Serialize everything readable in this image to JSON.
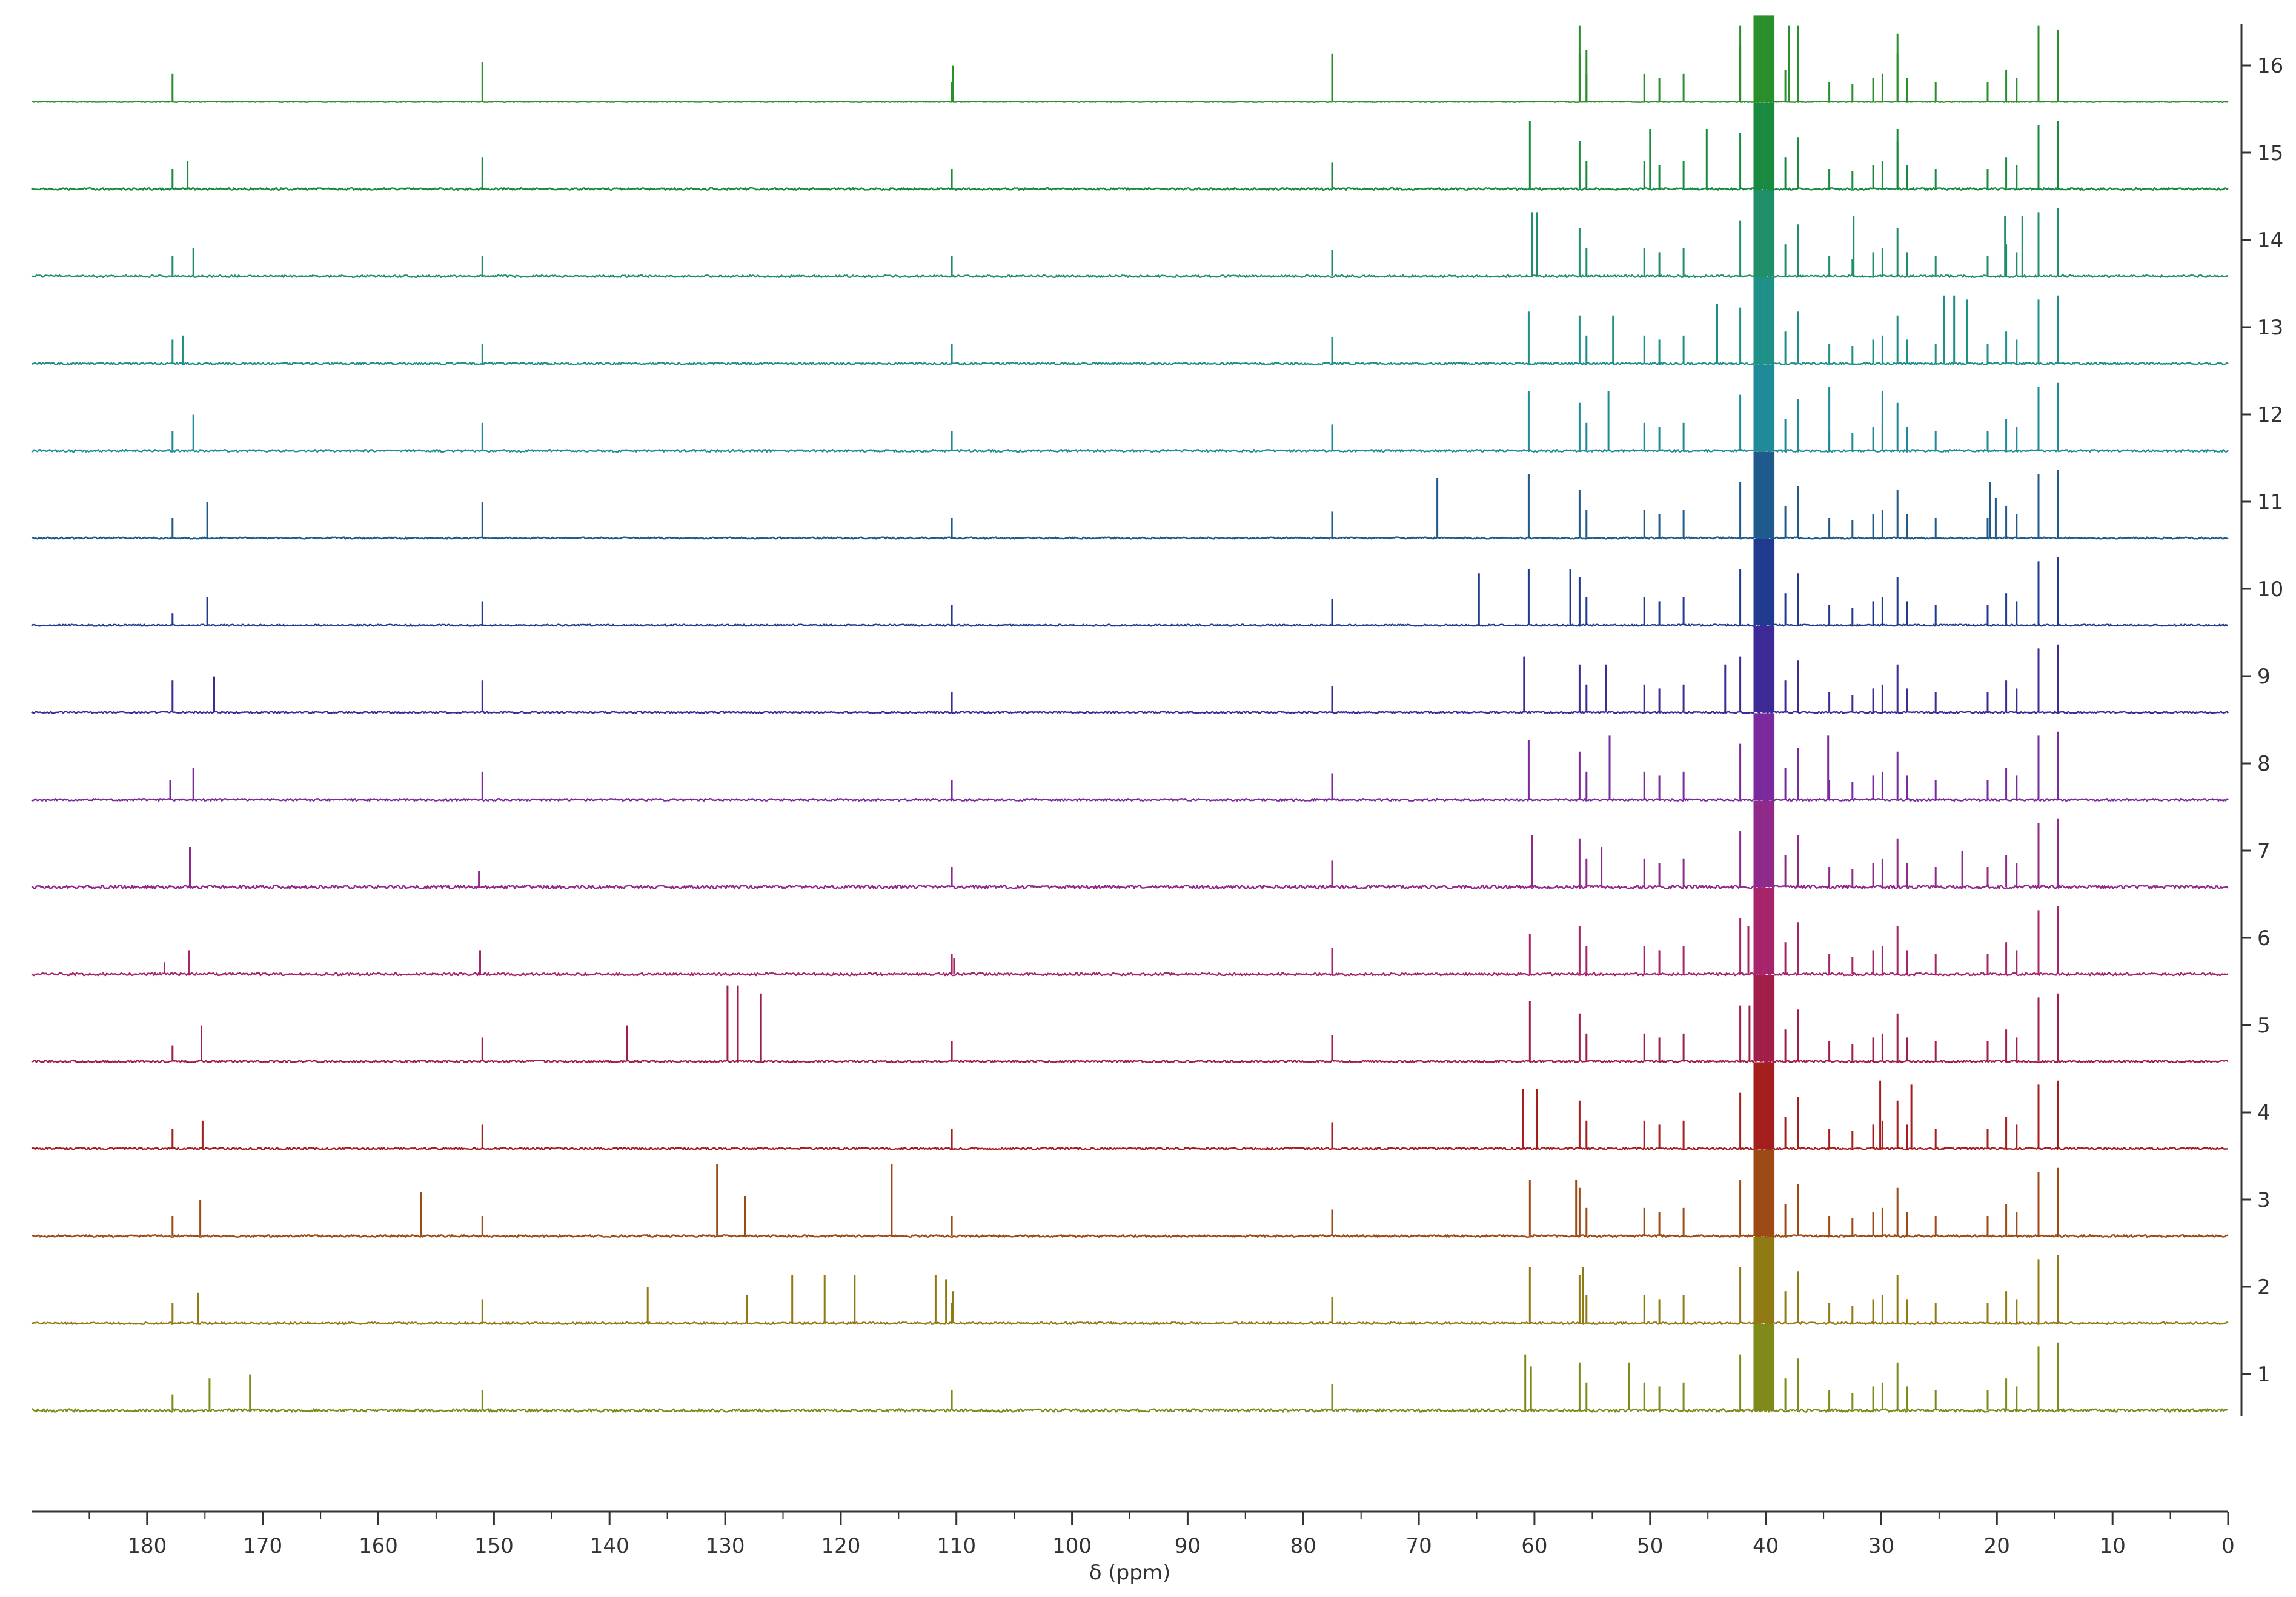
{
  "chart_data": {
    "type": "line",
    "title": "",
    "xlabel": "δ (ppm)",
    "ylabel": "",
    "xlim": [
      190,
      0
    ],
    "x_ticks": [
      180,
      170,
      160,
      150,
      140,
      130,
      120,
      110,
      100,
      90,
      80,
      70,
      60,
      50,
      40,
      30,
      20,
      10,
      0
    ],
    "stack_labels": [
      "1",
      "2",
      "3",
      "4",
      "5",
      "6",
      "7",
      "8",
      "9",
      "10",
      "11",
      "12",
      "13",
      "14",
      "15",
      "16"
    ],
    "common_peaks": [
      {
        "ppm": 110.4,
        "h": 0.25
      },
      {
        "ppm": 77.5,
        "h": 0.33
      },
      {
        "ppm": 56.1,
        "h": 0.6
      },
      {
        "ppm": 55.5,
        "h": 0.35
      },
      {
        "ppm": 50.5,
        "h": 0.35
      },
      {
        "ppm": 49.2,
        "h": 0.3
      },
      {
        "ppm": 47.1,
        "h": 0.35
      },
      {
        "ppm": 42.2,
        "h": 0.7
      },
      {
        "ppm": 38.3,
        "h": 0.4
      },
      {
        "ppm": 37.2,
        "h": 0.65
      },
      {
        "ppm": 34.5,
        "h": 0.25
      },
      {
        "ppm": 32.5,
        "h": 0.22
      },
      {
        "ppm": 30.7,
        "h": 0.3
      },
      {
        "ppm": 29.9,
        "h": 0.35
      },
      {
        "ppm": 28.6,
        "h": 0.6
      },
      {
        "ppm": 27.8,
        "h": 0.3
      },
      {
        "ppm": 25.3,
        "h": 0.25
      },
      {
        "ppm": 20.8,
        "h": 0.25
      },
      {
        "ppm": 19.2,
        "h": 0.4
      },
      {
        "ppm": 18.3,
        "h": 0.3
      },
      {
        "ppm": 16.4,
        "h": 0.8
      },
      {
        "ppm": 14.7,
        "h": 0.85
      }
    ],
    "series": [
      {
        "name": "1",
        "color": "#7f8a1a",
        "noise": 0.07,
        "peaks": [
          {
            "ppm": 177.8,
            "h": 0.2
          },
          {
            "ppm": 174.6,
            "h": 0.4
          },
          {
            "ppm": 171.1,
            "h": 0.45
          },
          {
            "ppm": 151.0,
            "h": 0.25
          },
          {
            "ppm": 60.8,
            "h": 0.7
          },
          {
            "ppm": 60.3,
            "h": 0.55
          },
          {
            "ppm": 51.8,
            "h": 0.6
          }
        ]
      },
      {
        "name": "2",
        "color": "#8f7a14",
        "noise": 0.05,
        "peaks": [
          {
            "ppm": 177.8,
            "h": 0.25
          },
          {
            "ppm": 175.6,
            "h": 0.38
          },
          {
            "ppm": 151.0,
            "h": 0.3
          },
          {
            "ppm": 136.7,
            "h": 0.45
          },
          {
            "ppm": 128.1,
            "h": 0.35
          },
          {
            "ppm": 124.2,
            "h": 0.6
          },
          {
            "ppm": 121.4,
            "h": 0.6
          },
          {
            "ppm": 118.8,
            "h": 0.6
          },
          {
            "ppm": 111.8,
            "h": 0.6
          },
          {
            "ppm": 110.9,
            "h": 0.55
          },
          {
            "ppm": 110.3,
            "h": 0.4
          },
          {
            "ppm": 60.4,
            "h": 0.7
          },
          {
            "ppm": 55.8,
            "h": 0.7
          }
        ]
      },
      {
        "name": "3",
        "color": "#9c4a16",
        "noise": 0.05,
        "peaks": [
          {
            "ppm": 177.8,
            "h": 0.25
          },
          {
            "ppm": 175.4,
            "h": 0.45
          },
          {
            "ppm": 156.3,
            "h": 0.55
          },
          {
            "ppm": 151.0,
            "h": 0.25
          },
          {
            "ppm": 130.7,
            "h": 0.9
          },
          {
            "ppm": 128.3,
            "h": 0.5
          },
          {
            "ppm": 115.6,
            "h": 0.9
          },
          {
            "ppm": 60.4,
            "h": 0.7
          },
          {
            "ppm": 56.4,
            "h": 0.7
          }
        ]
      },
      {
        "name": "4",
        "color": "#a51e1e",
        "noise": 0.05,
        "peaks": [
          {
            "ppm": 177.8,
            "h": 0.25
          },
          {
            "ppm": 175.2,
            "h": 0.35
          },
          {
            "ppm": 151.0,
            "h": 0.3
          },
          {
            "ppm": 61.0,
            "h": 0.75
          },
          {
            "ppm": 59.8,
            "h": 0.75
          },
          {
            "ppm": 30.1,
            "h": 0.85
          },
          {
            "ppm": 27.4,
            "h": 0.8
          }
        ]
      },
      {
        "name": "5",
        "color": "#a01e48",
        "noise": 0.05,
        "peaks": [
          {
            "ppm": 177.8,
            "h": 0.2
          },
          {
            "ppm": 175.3,
            "h": 0.45
          },
          {
            "ppm": 151.0,
            "h": 0.3
          },
          {
            "ppm": 138.5,
            "h": 0.45
          },
          {
            "ppm": 129.8,
            "h": 0.95
          },
          {
            "ppm": 128.9,
            "h": 0.95
          },
          {
            "ppm": 126.9,
            "h": 0.85
          },
          {
            "ppm": 60.4,
            "h": 0.75
          },
          {
            "ppm": 41.4,
            "h": 0.7
          }
        ]
      },
      {
        "name": "6",
        "color": "#a8246a",
        "noise": 0.06,
        "peaks": [
          {
            "ppm": 178.5,
            "h": 0.15
          },
          {
            "ppm": 176.4,
            "h": 0.3
          },
          {
            "ppm": 151.2,
            "h": 0.3
          },
          {
            "ppm": 110.2,
            "h": 0.2
          },
          {
            "ppm": 60.4,
            "h": 0.5
          },
          {
            "ppm": 41.5,
            "h": 0.6
          }
        ]
      },
      {
        "name": "7",
        "color": "#8f2a8a",
        "noise": 0.08,
        "peaks": [
          {
            "ppm": 176.3,
            "h": 0.5
          },
          {
            "ppm": 151.3,
            "h": 0.2
          },
          {
            "ppm": 60.2,
            "h": 0.65
          },
          {
            "ppm": 54.2,
            "h": 0.5
          },
          {
            "ppm": 23.0,
            "h": 0.45
          }
        ]
      },
      {
        "name": "8",
        "color": "#7a2a9c",
        "noise": 0.05,
        "peaks": [
          {
            "ppm": 178.0,
            "h": 0.25
          },
          {
            "ppm": 176.0,
            "h": 0.4
          },
          {
            "ppm": 151.0,
            "h": 0.35
          },
          {
            "ppm": 60.5,
            "h": 0.75
          },
          {
            "ppm": 53.5,
            "h": 0.8
          },
          {
            "ppm": 34.6,
            "h": 0.8
          }
        ]
      },
      {
        "name": "9",
        "color": "#3d2a96",
        "noise": 0.04,
        "peaks": [
          {
            "ppm": 177.8,
            "h": 0.4
          },
          {
            "ppm": 174.2,
            "h": 0.45
          },
          {
            "ppm": 151.0,
            "h": 0.4
          },
          {
            "ppm": 60.9,
            "h": 0.7
          },
          {
            "ppm": 53.8,
            "h": 0.6
          },
          {
            "ppm": 43.5,
            "h": 0.6
          }
        ]
      },
      {
        "name": "10",
        "color": "#1f3a8f",
        "noise": 0.04,
        "peaks": [
          {
            "ppm": 177.8,
            "h": 0.15
          },
          {
            "ppm": 174.8,
            "h": 0.35
          },
          {
            "ppm": 151.0,
            "h": 0.3
          },
          {
            "ppm": 64.8,
            "h": 0.65
          },
          {
            "ppm": 60.5,
            "h": 0.7
          },
          {
            "ppm": 56.9,
            "h": 0.7
          }
        ]
      },
      {
        "name": "11",
        "color": "#1e5a8c",
        "noise": 0.04,
        "peaks": [
          {
            "ppm": 177.8,
            "h": 0.25
          },
          {
            "ppm": 174.8,
            "h": 0.45
          },
          {
            "ppm": 151.0,
            "h": 0.45
          },
          {
            "ppm": 68.4,
            "h": 0.75
          },
          {
            "ppm": 60.5,
            "h": 0.8
          },
          {
            "ppm": 20.6,
            "h": 0.7
          },
          {
            "ppm": 20.1,
            "h": 0.5
          }
        ]
      },
      {
        "name": "12",
        "color": "#1e8a9a",
        "noise": 0.05,
        "peaks": [
          {
            "ppm": 177.8,
            "h": 0.25
          },
          {
            "ppm": 176.0,
            "h": 0.45
          },
          {
            "ppm": 151.0,
            "h": 0.35
          },
          {
            "ppm": 60.5,
            "h": 0.75
          },
          {
            "ppm": 53.6,
            "h": 0.75
          },
          {
            "ppm": 34.5,
            "h": 0.8
          },
          {
            "ppm": 29.9,
            "h": 0.75
          }
        ]
      },
      {
        "name": "13",
        "color": "#1f9088",
        "noise": 0.05,
        "peaks": [
          {
            "ppm": 177.8,
            "h": 0.3
          },
          {
            "ppm": 176.9,
            "h": 0.35
          },
          {
            "ppm": 151.0,
            "h": 0.25
          },
          {
            "ppm": 60.5,
            "h": 0.65
          },
          {
            "ppm": 53.2,
            "h": 0.6
          },
          {
            "ppm": 44.2,
            "h": 0.75
          },
          {
            "ppm": 24.6,
            "h": 0.85
          },
          {
            "ppm": 23.7,
            "h": 0.85
          },
          {
            "ppm": 22.6,
            "h": 0.8
          }
        ]
      },
      {
        "name": "14",
        "color": "#1e8f68",
        "noise": 0.05,
        "peaks": [
          {
            "ppm": 177.8,
            "h": 0.25
          },
          {
            "ppm": 176.0,
            "h": 0.35
          },
          {
            "ppm": 151.0,
            "h": 0.25
          },
          {
            "ppm": 60.2,
            "h": 0.8
          },
          {
            "ppm": 59.8,
            "h": 0.8
          },
          {
            "ppm": 32.4,
            "h": 0.75
          },
          {
            "ppm": 19.3,
            "h": 0.75
          },
          {
            "ppm": 17.8,
            "h": 0.75
          }
        ]
      },
      {
        "name": "15",
        "color": "#1a8a40",
        "noise": 0.05,
        "peaks": [
          {
            "ppm": 177.8,
            "h": 0.25
          },
          {
            "ppm": 176.5,
            "h": 0.35
          },
          {
            "ppm": 151.0,
            "h": 0.4
          },
          {
            "ppm": 60.4,
            "h": 0.85
          },
          {
            "ppm": 50.0,
            "h": 0.75
          },
          {
            "ppm": 45.1,
            "h": 0.75
          },
          {
            "ppm": 28.6,
            "h": 0.75
          }
        ]
      },
      {
        "name": "16",
        "color": "#2a8f2a",
        "noise": 0.02,
        "peaks": [
          {
            "ppm": 177.8,
            "h": 0.35
          },
          {
            "ppm": 151.0,
            "h": 0.5
          },
          {
            "ppm": 110.3,
            "h": 0.45
          },
          {
            "ppm": 77.5,
            "h": 0.6
          },
          {
            "ppm": 56.1,
            "h": 0.95
          },
          {
            "ppm": 55.5,
            "h": 0.65
          },
          {
            "ppm": 42.2,
            "h": 0.95
          },
          {
            "ppm": 38.0,
            "h": 0.95
          },
          {
            "ppm": 37.2,
            "h": 0.95
          },
          {
            "ppm": 28.6,
            "h": 0.85
          },
          {
            "ppm": 16.4,
            "h": 0.95
          },
          {
            "ppm": 14.7,
            "h": 0.9
          }
        ]
      }
    ]
  }
}
